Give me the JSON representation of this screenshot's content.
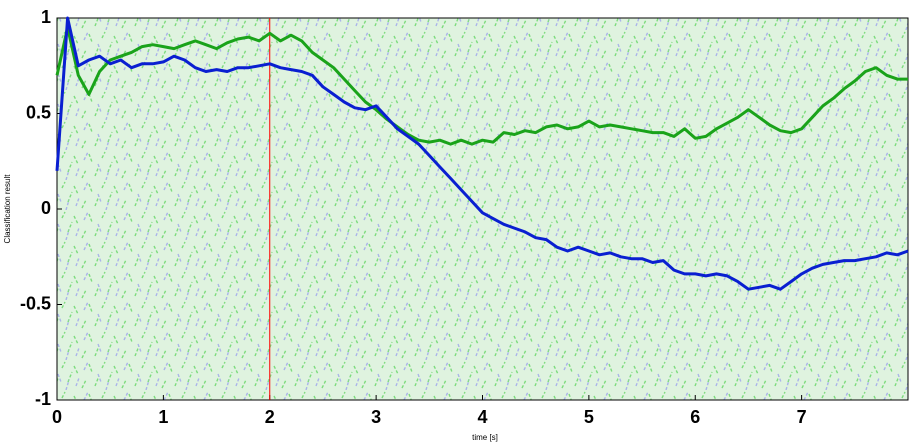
{
  "chart_data": {
    "type": "line",
    "x_label": "time [s]",
    "y_label": "Classification result",
    "xlim": [
      0,
      8
    ],
    "ylim": [
      -1,
      1
    ],
    "xticks": [
      0,
      1,
      2,
      3,
      4,
      5,
      6,
      7
    ],
    "yticks": [
      -1,
      -0.5,
      0,
      0.5,
      1
    ],
    "vline_x": 2,
    "vline_color": "#ff0000",
    "x": [
      0,
      0.1,
      0.2,
      0.3,
      0.4,
      0.5,
      0.6,
      0.7,
      0.8,
      0.9,
      1,
      1.1,
      1.2,
      1.3,
      1.4,
      1.5,
      1.6,
      1.7,
      1.8,
      1.9,
      2,
      2.1,
      2.2,
      2.3,
      2.4,
      2.5,
      2.6,
      2.7,
      2.8,
      2.9,
      3,
      3.1,
      3.2,
      3.3,
      3.4,
      3.5,
      3.6,
      3.7,
      3.8,
      3.9,
      4,
      4.1,
      4.2,
      4.3,
      4.4,
      4.5,
      4.6,
      4.7,
      4.8,
      4.9,
      5,
      5.1,
      5.2,
      5.3,
      5.4,
      5.5,
      5.6,
      5.7,
      5.8,
      5.9,
      6,
      6.1,
      6.2,
      6.3,
      6.4,
      6.5,
      6.6,
      6.7,
      6.8,
      6.9,
      7,
      7.1,
      7.2,
      7.3,
      7.4,
      7.5,
      7.6,
      7.7,
      7.8,
      7.9,
      8
    ],
    "series": [
      {
        "color": "#1aa31a",
        "values": [
          0.7,
          0.95,
          0.7,
          0.6,
          0.72,
          0.78,
          0.8,
          0.82,
          0.85,
          0.86,
          0.85,
          0.84,
          0.86,
          0.88,
          0.86,
          0.84,
          0.87,
          0.89,
          0.9,
          0.88,
          0.92,
          0.88,
          0.91,
          0.88,
          0.82,
          0.78,
          0.74,
          0.68,
          0.62,
          0.56,
          0.52,
          0.47,
          0.43,
          0.39,
          0.36,
          0.35,
          0.36,
          0.34,
          0.36,
          0.34,
          0.36,
          0.35,
          0.4,
          0.39,
          0.41,
          0.4,
          0.43,
          0.44,
          0.42,
          0.43,
          0.46,
          0.43,
          0.44,
          0.43,
          0.42,
          0.41,
          0.4,
          0.4,
          0.38,
          0.42,
          0.37,
          0.38,
          0.42,
          0.45,
          0.48,
          0.52,
          0.48,
          0.44,
          0.41,
          0.4,
          0.42,
          0.48,
          0.54,
          0.58,
          0.63,
          0.67,
          0.72,
          0.74,
          0.7,
          0.68,
          0.68
        ]
      },
      {
        "color": "#0a1fd1",
        "values": [
          0.2,
          1,
          0.75,
          0.78,
          0.8,
          0.76,
          0.78,
          0.74,
          0.76,
          0.76,
          0.77,
          0.8,
          0.78,
          0.74,
          0.72,
          0.73,
          0.72,
          0.74,
          0.74,
          0.75,
          0.76,
          0.74,
          0.73,
          0.72,
          0.7,
          0.64,
          0.6,
          0.56,
          0.53,
          0.52,
          0.54,
          0.48,
          0.42,
          0.38,
          0.34,
          0.28,
          0.22,
          0.16,
          0.1,
          0.04,
          -0.02,
          -0.05,
          -0.08,
          -0.1,
          -0.12,
          -0.15,
          -0.16,
          -0.2,
          -0.22,
          -0.2,
          -0.22,
          -0.24,
          -0.23,
          -0.25,
          -0.26,
          -0.26,
          -0.28,
          -0.27,
          -0.32,
          -0.34,
          -0.34,
          -0.35,
          -0.34,
          -0.35,
          -0.38,
          -0.42,
          -0.41,
          -0.4,
          -0.42,
          -0.38,
          -0.34,
          -0.31,
          -0.29,
          -0.28,
          -0.27,
          -0.27,
          -0.26,
          -0.25,
          -0.23,
          -0.24,
          -0.22
        ]
      }
    ]
  }
}
